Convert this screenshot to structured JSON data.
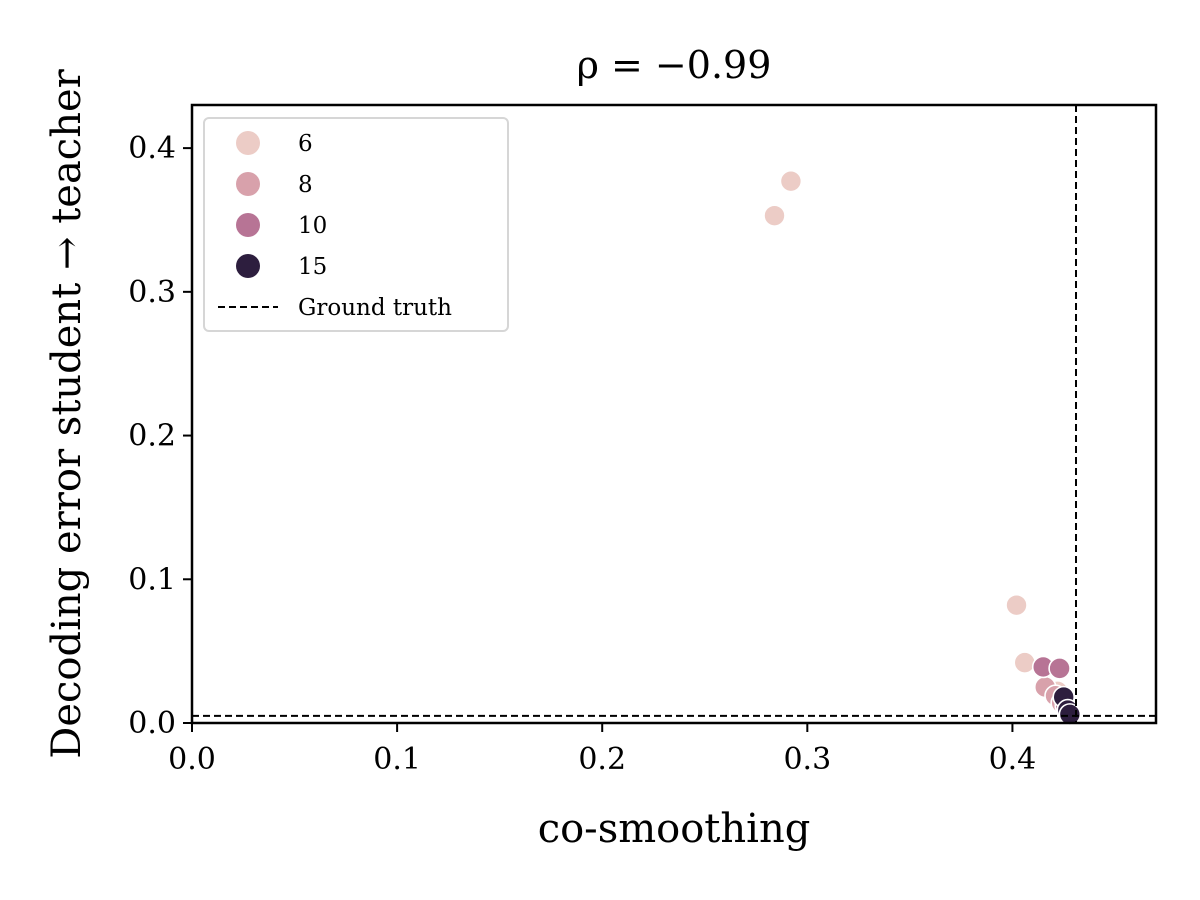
{
  "chart_data": {
    "type": "scatter",
    "title": "ρ = −0.99",
    "xlabel": "co-smoothing",
    "ylabel": "Decoding error student → teacher",
    "xlim": [
      0.0,
      0.47
    ],
    "ylim": [
      0.0,
      0.43
    ],
    "xticks": [
      0.0,
      0.1,
      0.2,
      0.3,
      0.4
    ],
    "xtick_labels": [
      "0.0",
      "0.1",
      "0.2",
      "0.3",
      "0.4"
    ],
    "yticks": [
      0.0,
      0.1,
      0.2,
      0.3,
      0.4
    ],
    "ytick_labels": [
      "0.0",
      "0.1",
      "0.2",
      "0.3",
      "0.4"
    ],
    "grid": false,
    "legend_position": "top-left",
    "series": [
      {
        "name": "6",
        "color": "#ecccc6",
        "points": [
          {
            "x": 0.292,
            "y": 0.377
          },
          {
            "x": 0.284,
            "y": 0.353
          },
          {
            "x": 0.402,
            "y": 0.082
          },
          {
            "x": 0.406,
            "y": 0.042
          },
          {
            "x": 0.422,
            "y": 0.022
          }
        ]
      },
      {
        "name": "8",
        "color": "#d8a1ab",
        "points": [
          {
            "x": 0.416,
            "y": 0.025
          },
          {
            "x": 0.421,
            "y": 0.019
          },
          {
            "x": 0.424,
            "y": 0.014
          }
        ]
      },
      {
        "name": "10",
        "color": "#b77495",
        "points": [
          {
            "x": 0.415,
            "y": 0.039
          },
          {
            "x": 0.423,
            "y": 0.038
          },
          {
            "x": 0.426,
            "y": 0.012
          }
        ]
      },
      {
        "name": "15",
        "color": "#2d1e3e",
        "points": [
          {
            "x": 0.425,
            "y": 0.018
          },
          {
            "x": 0.427,
            "y": 0.009
          },
          {
            "x": 0.428,
            "y": 0.006
          }
        ]
      }
    ],
    "reference_lines": {
      "label": "Ground truth",
      "x": 0.431,
      "y": 0.005,
      "style": "dashed",
      "color": "#000000"
    }
  }
}
